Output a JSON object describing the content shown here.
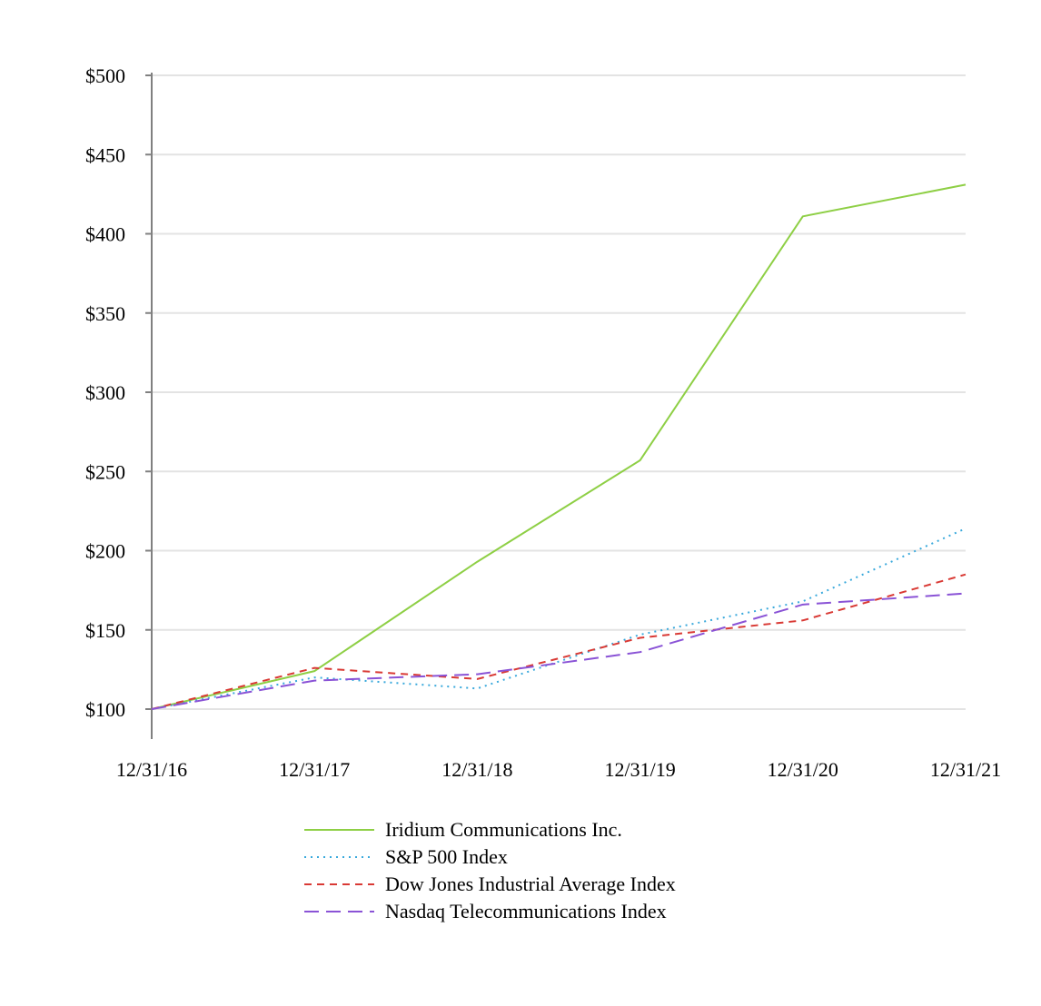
{
  "chart_data": {
    "type": "line",
    "title": "",
    "xlabel": "",
    "ylabel": "",
    "categories": [
      "12/31/16",
      "12/31/17",
      "12/31/18",
      "12/31/19",
      "12/31/20",
      "12/31/21"
    ],
    "ylim": [
      100,
      500
    ],
    "yticks": [
      100,
      150,
      200,
      250,
      300,
      350,
      400,
      450,
      500
    ],
    "ytick_labels": [
      "$100",
      "$150",
      "$200",
      "$250",
      "$300",
      "$350",
      "$400",
      "$450",
      "$500"
    ],
    "grid": true,
    "legend_position": "bottom-center",
    "series": [
      {
        "name": "Iridium Communications Inc.",
        "values": [
          100,
          124,
          193,
          257,
          411,
          431
        ],
        "color": "#8ecf45",
        "dash": "solid"
      },
      {
        "name": "S&P 500 Index",
        "values": [
          100,
          120,
          113,
          147,
          168,
          214
        ],
        "color": "#3aa9dc",
        "dash": "dotted"
      },
      {
        "name": "Dow Jones Industrial Average Index",
        "values": [
          100,
          126,
          119,
          145,
          156,
          185
        ],
        "color": "#d93a35",
        "dash": "dashed"
      },
      {
        "name": "Nasdaq Telecommunications Index",
        "values": [
          100,
          118,
          122,
          136,
          166,
          173
        ],
        "color": "#8a53d6",
        "dash": "longdash"
      }
    ]
  }
}
